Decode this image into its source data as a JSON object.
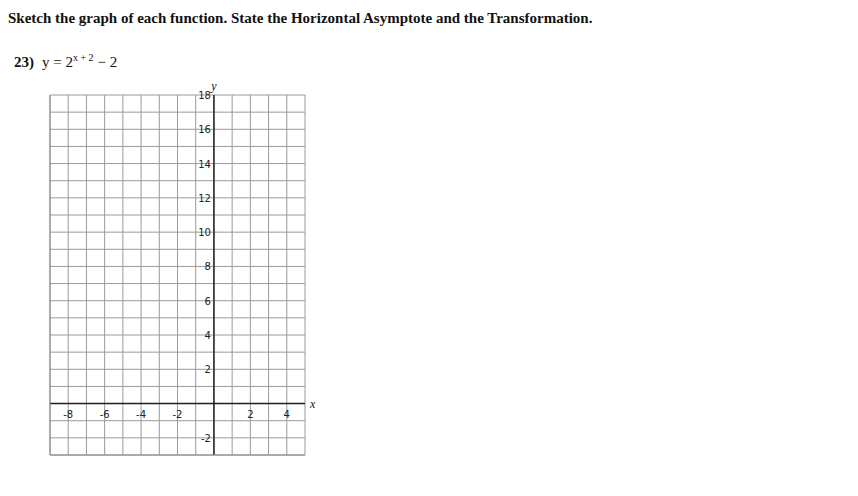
{
  "heading": "Sketch the graph of each function. State the Horizontal Asymptote and the Transformation.",
  "problem": {
    "number": "23)",
    "base": "y = 2",
    "exponent": "x + 2",
    "tail": "− 2"
  },
  "chart_data": {
    "type": "grid",
    "x_label": "x",
    "y_label": "y",
    "xlim": [
      -9,
      5
    ],
    "ylim": [
      -3,
      18
    ],
    "xticks": [
      -8,
      -6,
      -4,
      -2,
      2,
      4
    ],
    "yticks": [
      -2,
      2,
      4,
      6,
      8,
      10,
      12,
      14,
      16,
      18
    ],
    "grid": true
  }
}
